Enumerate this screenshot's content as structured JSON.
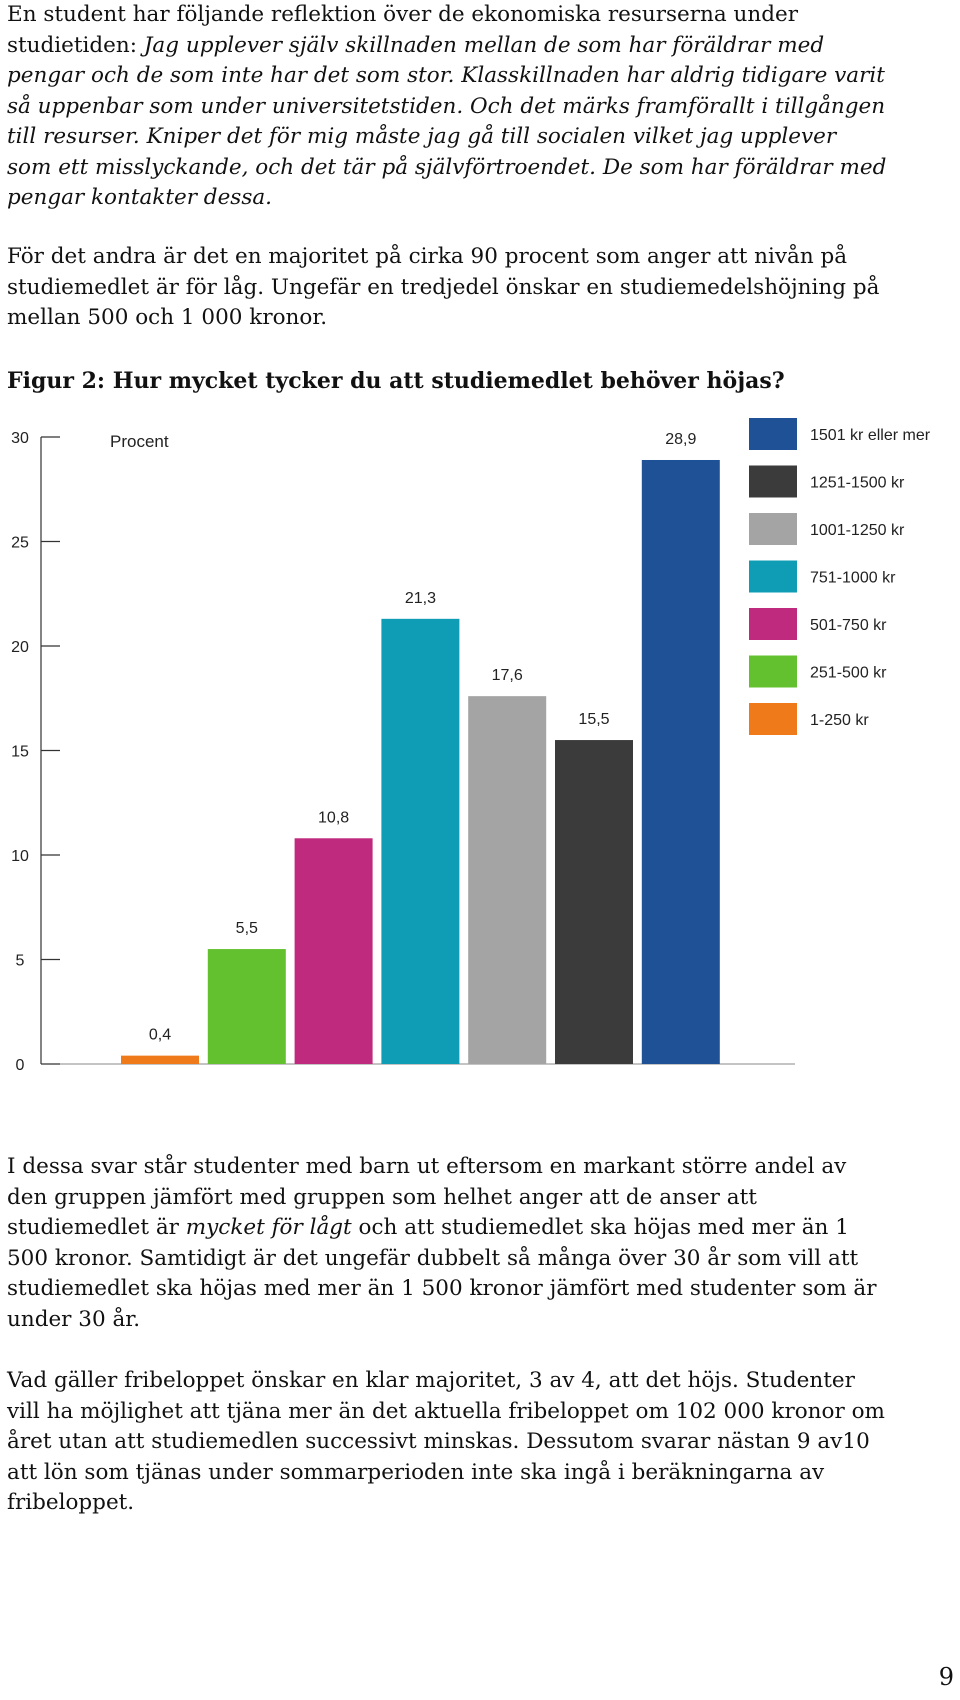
{
  "intro": {
    "lead": "En student har följande reflektion över de ekonomiska resurserna under studietiden: ",
    "quote": "Jag upplever själv skillnaden mellan de som har föräldrar med pengar och de som inte har det som stor. Klasskillnaden har aldrig tidigare varit så uppenbar som under universitetstiden. Och det märks framförallt i tillgången till resurser. Kniper det för mig måste jag gå till socialen vilket jag upplever som ett misslyckande, och det tär på självförtroendet. De som har föräldrar med pengar kontakter dessa."
  },
  "para2": "För det andra är det en majoritet på cirka 90 procent som anger att nivån på studiemedlet är för låg. Ungefär en tredjedel önskar en studiemedelshöjning på mellan 500 och 1 000 kronor.",
  "figure_title": "Figur 2: Hur mycket tycker du att studiemedlet behöver höjas?",
  "chart_data": {
    "type": "bar",
    "ylabel": "Procent",
    "ylim": [
      0,
      30
    ],
    "yticks": [
      "0",
      "5",
      "10",
      "15",
      "20",
      "25",
      "30"
    ],
    "legend_position": "top-right",
    "series": [
      {
        "name": "1-250 kr",
        "value": 0.4,
        "label": "0,4",
        "color": "#ef7a1a"
      },
      {
        "name": "251-500 kr",
        "value": 5.5,
        "label": "5,5",
        "color": "#63c12f"
      },
      {
        "name": "501-750 kr",
        "value": 10.8,
        "label": "10,8",
        "color": "#bf2a7e"
      },
      {
        "name": "751-1000 kr",
        "value": 21.3,
        "label": "21,3",
        "color": "#0e9db4"
      },
      {
        "name": "1001-1250 kr",
        "value": 17.6,
        "label": "17,6",
        "color": "#a4a4a4"
      },
      {
        "name": "1251-1500 kr",
        "value": 15.5,
        "label": "15,5",
        "color": "#3b3b3b"
      },
      {
        "name": "1501 kr eller mer",
        "value": 28.9,
        "label": "28,9",
        "color": "#1f5197"
      }
    ]
  },
  "para3": {
    "before": "I dessa svar står studenter med barn ut eftersom en markant större andel av den gruppen jämfört med gruppen som helhet anger att de anser att studiemedlet är ",
    "emph": "mycket för lågt",
    "after": " och att studiemedlet ska höjas med mer än 1 500 kronor. Samtidigt är det ungefär dubbelt så många över 30 år som vill att studiemedlet ska höjas med mer än 1 500 kronor jämfört med studenter som är under 30 år."
  },
  "para4": "Vad gäller fribeloppet önskar en klar majoritet, 3 av 4, att det höjs. Studenter vill ha möjlighet att tjäna mer än det aktuella fribeloppet om 102 000 kronor om året utan att studiemedlen successivt minskas. Dessutom svarar nästan 9 av10 att lön som tjänas under sommarperioden inte ska ingå i beräkningarna av fribeloppet.",
  "page_number": "9"
}
